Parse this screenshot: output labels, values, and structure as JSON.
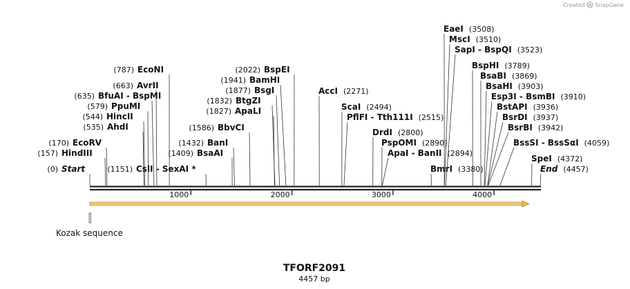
{
  "credit": "Created by SnapGene",
  "title": "TFORF2091",
  "length_label": "4457 bp",
  "axis": {
    "max": 4457,
    "ticks": [
      "1000",
      "2000",
      "3000",
      "4000"
    ]
  },
  "feature": {
    "name": "Kozak sequence"
  },
  "labels": [
    {
      "pos": "(3508)",
      "enzyme": "EaeI",
      "site": 3508
    },
    {
      "pos": "(3510)",
      "enzyme": "MscI",
      "site": 3510
    },
    {
      "pos": "(3523)",
      "enzyme": "SapI - BspQI",
      "site": 3523
    },
    {
      "pos": "(3789)",
      "enzyme": "BspHI",
      "site": 3789
    },
    {
      "pos": "(3869)",
      "enzyme": "BsaBI",
      "site": 3869
    },
    {
      "pos": "(3903)",
      "enzyme": "BsaHI",
      "site": 3903
    },
    {
      "pos": "(3910)",
      "enzyme": "Esp3I - BsmBI",
      "site": 3910
    },
    {
      "pos": "(3936)",
      "enzyme": "BstAPI",
      "site": 3936
    },
    {
      "pos": "(3937)",
      "enzyme": "BsrDI",
      "site": 3937
    },
    {
      "pos": "(3942)",
      "enzyme": "BsrBI",
      "site": 3942
    },
    {
      "pos": "(4059)",
      "enzyme": "BssSI - BssSαI",
      "site": 4059
    },
    {
      "pos": "(4372)",
      "enzyme": "SpeI",
      "site": 4372
    },
    {
      "pos": "(4457)",
      "enzyme": "End",
      "site": 4457
    },
    {
      "pos": "(3380)",
      "enzyme": "BmrI",
      "site": 3380
    },
    {
      "pos": "(2894)",
      "enzyme": "ApaI - BanII",
      "site": 2894
    },
    {
      "pos": "(2890)",
      "enzyme": "PspOMI",
      "site": 2890
    },
    {
      "pos": "(2800)",
      "enzyme": "DrdI",
      "site": 2800
    },
    {
      "pos": "(2515)",
      "enzyme": "PflFI - Tth111I",
      "site": 2515
    },
    {
      "pos": "(2494)",
      "enzyme": "ScaI",
      "site": 2494
    },
    {
      "pos": "(2271)",
      "enzyme": "AccI",
      "site": 2271
    },
    {
      "pos": "(2022)",
      "enzyme": "BspEI",
      "site": 2022
    },
    {
      "pos": "(1941)",
      "enzyme": "BamHI",
      "site": 1941
    },
    {
      "pos": "(1877)",
      "enzyme": "BsgI",
      "site": 1877
    },
    {
      "pos": "(1832)",
      "enzyme": "BtgZI",
      "site": 1832
    },
    {
      "pos": "(1827)",
      "enzyme": "ApaLI",
      "site": 1827
    },
    {
      "pos": "(1586)",
      "enzyme": "BbvCI",
      "site": 1586
    },
    {
      "pos": "(1432)",
      "enzyme": "BanI",
      "site": 1432
    },
    {
      "pos": "(1409)",
      "enzyme": "BsaAI",
      "site": 1409
    },
    {
      "pos": "(1151)",
      "enzyme": "CslI - SexAI *",
      "site": 1151
    },
    {
      "pos": "(787)",
      "enzyme": "EcoNI",
      "site": 787
    },
    {
      "pos": "(663)",
      "enzyme": "AvrII",
      "site": 663
    },
    {
      "pos": "(635)",
      "enzyme": "BfuAI - BspMI",
      "site": 635
    },
    {
      "pos": "(579)",
      "enzyme": "PpuMI",
      "site": 579
    },
    {
      "pos": "(544)",
      "enzyme": "HincII",
      "site": 544
    },
    {
      "pos": "(535)",
      "enzyme": "AhdI",
      "site": 535
    },
    {
      "pos": "(170)",
      "enzyme": "EcoRV",
      "site": 170
    },
    {
      "pos": "(157)",
      "enzyme": "HindIII",
      "site": 157
    },
    {
      "pos": "(0)",
      "enzyme": "Start",
      "site": 0
    }
  ]
}
